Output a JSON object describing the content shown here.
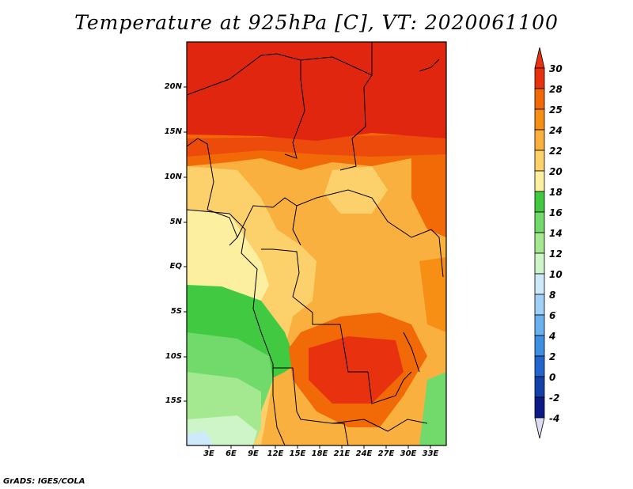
{
  "title": "Temperature at 925hPa [C], VT: 2020061100",
  "credit": "GrADS: IGES/COLA",
  "lat_labels": [
    "20N",
    "15N",
    "10N",
    "5N",
    "EQ",
    "5S",
    "10S",
    "15S"
  ],
  "lon_labels": [
    "3E",
    "6E",
    "9E",
    "12E",
    "15E",
    "18E",
    "21E",
    "24E",
    "27E",
    "30E",
    "33E"
  ],
  "colorbar": {
    "labels": [
      "30",
      "28",
      "25",
      "24",
      "22",
      "20",
      "18",
      "16",
      "14",
      "12",
      "10",
      "8",
      "6",
      "4",
      "2",
      "0",
      "-2",
      "-4"
    ],
    "colors": [
      "#e8320f",
      "#e8320f",
      "#f26a08",
      "#f78f14",
      "#f9b03f",
      "#fcd06b",
      "#fcef9f",
      "#42c942",
      "#72d96b",
      "#a4e88f",
      "#cdf5c8",
      "#cde9fa",
      "#9fd0f5",
      "#6ab2ef",
      "#3e8fe3",
      "#2266cd",
      "#1440a9",
      "#0b1a86",
      "#dcdcf5"
    ]
  }
}
